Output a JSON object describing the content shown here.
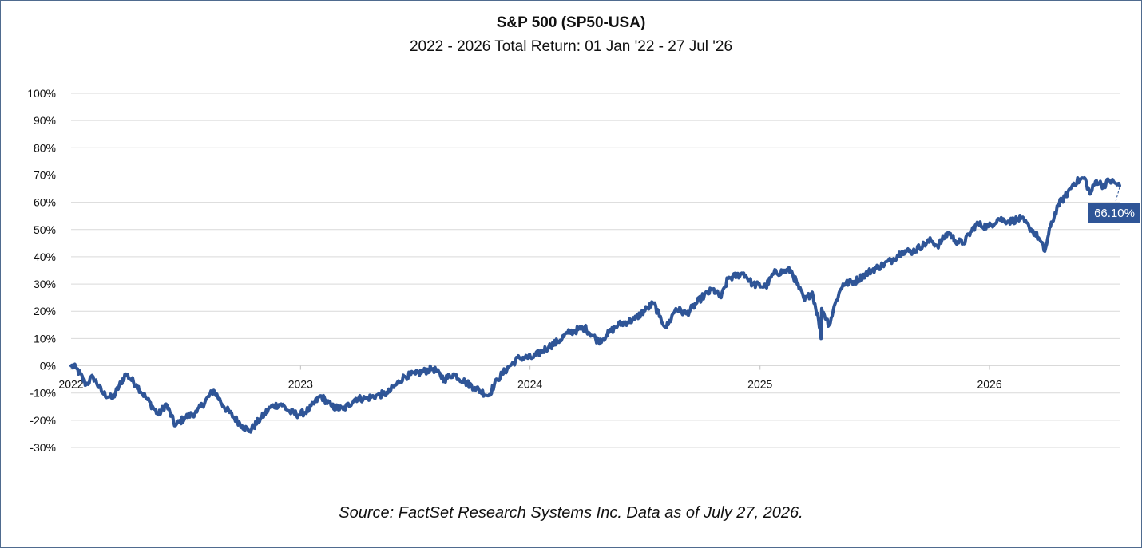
{
  "chart_data": {
    "type": "line",
    "title": "S&P 500 (SP50-USA)",
    "subtitle": "2022 - 2026 Total Return: 01 Jan '22 - 27 Jul '26",
    "source": "Source: FactSet Research Systems Inc. Data as of July 27, 2026.",
    "ylim": [
      -30,
      100
    ],
    "y_ticks": [
      100,
      90,
      80,
      70,
      60,
      50,
      40,
      30,
      20,
      10,
      0,
      -10,
      -20,
      -30
    ],
    "y_tick_labels": [
      "100%",
      "90%",
      "80%",
      "70%",
      "60%",
      "50%",
      "40%",
      "30%",
      "20%",
      "10%",
      "0%",
      "-10%",
      "-20%",
      "-30%"
    ],
    "x_range": [
      "2022-01-01",
      "2026-07-27"
    ],
    "x_ticks": [
      {
        "date": "2022-01-01",
        "label": "2022"
      },
      {
        "date": "2023-01-01",
        "label": "2023"
      },
      {
        "date": "2024-01-01",
        "label": "2024"
      },
      {
        "date": "2025-01-01",
        "label": "2025"
      },
      {
        "date": "2026-01-01",
        "label": "2026"
      }
    ],
    "grid": true,
    "last_value_label": "66.10%",
    "colors": {
      "line": "#2f5597",
      "grid": "#d9d9d9",
      "callout": "#2f5597"
    },
    "series": [
      {
        "points": [
          [
            "2022-01-01",
            0
          ],
          [
            "2022-01-10",
            -1
          ],
          [
            "2022-01-25",
            -7
          ],
          [
            "2022-02-05",
            -4
          ],
          [
            "2022-02-20",
            -10
          ],
          [
            "2022-03-08",
            -12
          ],
          [
            "2022-03-29",
            -3
          ],
          [
            "2022-04-15",
            -7
          ],
          [
            "2022-05-01",
            -12
          ],
          [
            "2022-05-20",
            -18
          ],
          [
            "2022-06-01",
            -14
          ],
          [
            "2022-06-16",
            -22
          ],
          [
            "2022-07-01",
            -19
          ],
          [
            "2022-07-20",
            -17
          ],
          [
            "2022-08-16",
            -9
          ],
          [
            "2022-09-01",
            -15
          ],
          [
            "2022-09-30",
            -22
          ],
          [
            "2022-10-12",
            -24
          ],
          [
            "2022-10-31",
            -19
          ],
          [
            "2022-11-15",
            -15
          ],
          [
            "2022-12-01",
            -14
          ],
          [
            "2022-12-15",
            -17
          ],
          [
            "2022-12-30",
            -18
          ],
          [
            "2023-01-15",
            -16
          ],
          [
            "2023-02-02",
            -11
          ],
          [
            "2023-02-20",
            -15
          ],
          [
            "2023-03-10",
            -16
          ],
          [
            "2023-03-30",
            -12
          ],
          [
            "2023-04-15",
            -12
          ],
          [
            "2023-05-01",
            -11
          ],
          [
            "2023-05-20",
            -10
          ],
          [
            "2023-06-15",
            -4
          ],
          [
            "2023-07-03",
            -3
          ],
          [
            "2023-07-31",
            -1
          ],
          [
            "2023-08-18",
            -5
          ],
          [
            "2023-09-01",
            -3
          ],
          [
            "2023-09-20",
            -6
          ],
          [
            "2023-10-05",
            -8
          ],
          [
            "2023-10-27",
            -11
          ],
          [
            "2023-11-10",
            -5
          ],
          [
            "2023-11-30",
            0
          ],
          [
            "2023-12-15",
            3
          ],
          [
            "2024-01-05",
            3
          ],
          [
            "2024-01-31",
            7
          ],
          [
            "2024-02-15",
            9
          ],
          [
            "2024-03-01",
            12
          ],
          [
            "2024-03-28",
            14
          ],
          [
            "2024-04-19",
            9
          ],
          [
            "2024-05-01",
            11
          ],
          [
            "2024-05-20",
            15
          ],
          [
            "2024-06-15",
            17
          ],
          [
            "2024-07-05",
            21
          ],
          [
            "2024-07-16",
            23
          ],
          [
            "2024-07-25",
            18
          ],
          [
            "2024-08-05",
            14
          ],
          [
            "2024-08-20",
            21
          ],
          [
            "2024-09-06",
            19
          ],
          [
            "2024-09-30",
            25
          ],
          [
            "2024-10-18",
            28
          ],
          [
            "2024-10-31",
            25
          ],
          [
            "2024-11-11",
            32
          ],
          [
            "2024-12-06",
            34
          ],
          [
            "2024-12-20",
            30
          ],
          [
            "2025-01-10",
            29
          ],
          [
            "2025-01-23",
            34
          ],
          [
            "2025-02-19",
            35
          ],
          [
            "2025-03-01",
            30
          ],
          [
            "2025-03-13",
            24
          ],
          [
            "2025-03-25",
            27
          ],
          [
            "2025-04-04",
            17
          ],
          [
            "2025-04-08",
            10
          ],
          [
            "2025-04-09",
            21
          ],
          [
            "2025-04-21",
            15
          ],
          [
            "2025-05-02",
            24
          ],
          [
            "2025-05-13",
            30
          ],
          [
            "2025-06-01",
            31
          ],
          [
            "2025-06-27",
            35
          ],
          [
            "2025-07-15",
            37
          ],
          [
            "2025-07-31",
            39
          ],
          [
            "2025-08-15",
            42
          ],
          [
            "2025-09-01",
            42
          ],
          [
            "2025-09-30",
            46
          ],
          [
            "2025-10-10",
            44
          ],
          [
            "2025-10-28",
            49
          ],
          [
            "2025-11-07",
            46
          ],
          [
            "2025-11-20",
            45
          ],
          [
            "2025-12-11",
            52
          ],
          [
            "2025-12-31",
            51
          ],
          [
            "2026-01-15",
            54
          ],
          [
            "2026-02-01",
            53
          ],
          [
            "2026-02-20",
            54
          ],
          [
            "2026-03-05",
            51
          ],
          [
            "2026-03-20",
            47
          ],
          [
            "2026-03-30",
            42
          ],
          [
            "2026-04-08",
            51
          ],
          [
            "2026-04-20",
            59
          ],
          [
            "2026-05-01",
            62
          ],
          [
            "2026-05-15",
            67
          ],
          [
            "2026-06-01",
            69
          ],
          [
            "2026-06-10",
            63
          ],
          [
            "2026-06-20",
            68
          ],
          [
            "2026-07-01",
            66
          ],
          [
            "2026-07-10",
            68
          ],
          [
            "2026-07-20",
            67
          ],
          [
            "2026-07-27",
            66.1
          ]
        ]
      }
    ]
  }
}
